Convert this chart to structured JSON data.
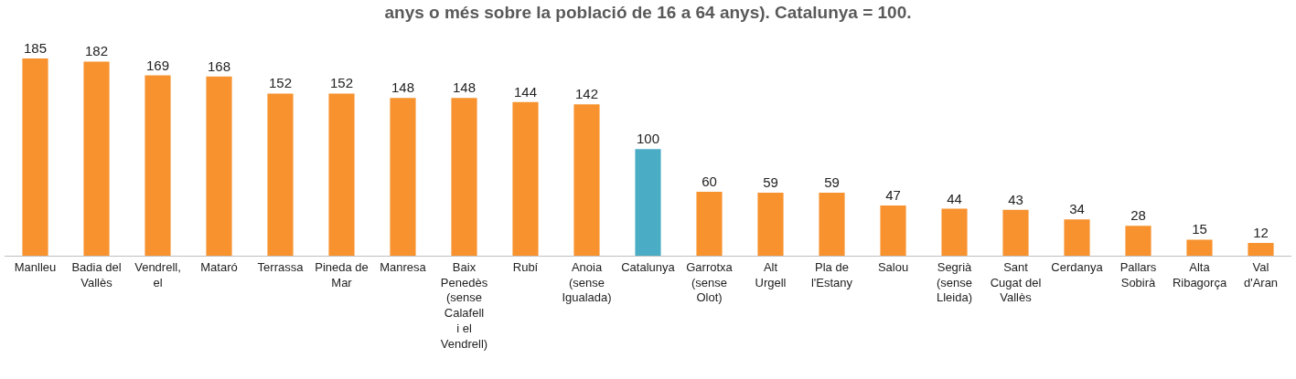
{
  "chart_data": {
    "type": "bar",
    "title": "anys o més sobre la població de 16 a 64 anys). Catalunya = 100.",
    "categories": [
      "Manlleu",
      "Badia del Vallès",
      "Vendrell, el",
      "Mataró",
      "Terrassa",
      "Pineda de Mar",
      "Manresa",
      "Baix Penedès (sense Calafell i el Vendrell)",
      "Rubí",
      "Anoia (sense Igualada)",
      "Catalunya",
      "Garrotxa (sense Olot)",
      "Alt Urgell",
      "Pla de l'Estany",
      "Salou",
      "Segrià (sense Lleida)",
      "Sant Cugat del Vallès",
      "Cerdanya",
      "Pallars Sobirà",
      "Alta Ribagorça",
      "Val d'Aran"
    ],
    "values": [
      185,
      182,
      169,
      168,
      152,
      152,
      148,
      148,
      144,
      142,
      100,
      60,
      59,
      59,
      47,
      44,
      43,
      34,
      28,
      15,
      12
    ],
    "colors": [
      "#f7922e",
      "#f7922e",
      "#f7922e",
      "#f7922e",
      "#f7922e",
      "#f7922e",
      "#f7922e",
      "#f7922e",
      "#f7922e",
      "#f7922e",
      "#4bacc6",
      "#f7922e",
      "#f7922e",
      "#f7922e",
      "#f7922e",
      "#f7922e",
      "#f7922e",
      "#f7922e",
      "#f7922e",
      "#f7922e",
      "#f7922e"
    ],
    "data_labels": true
  }
}
